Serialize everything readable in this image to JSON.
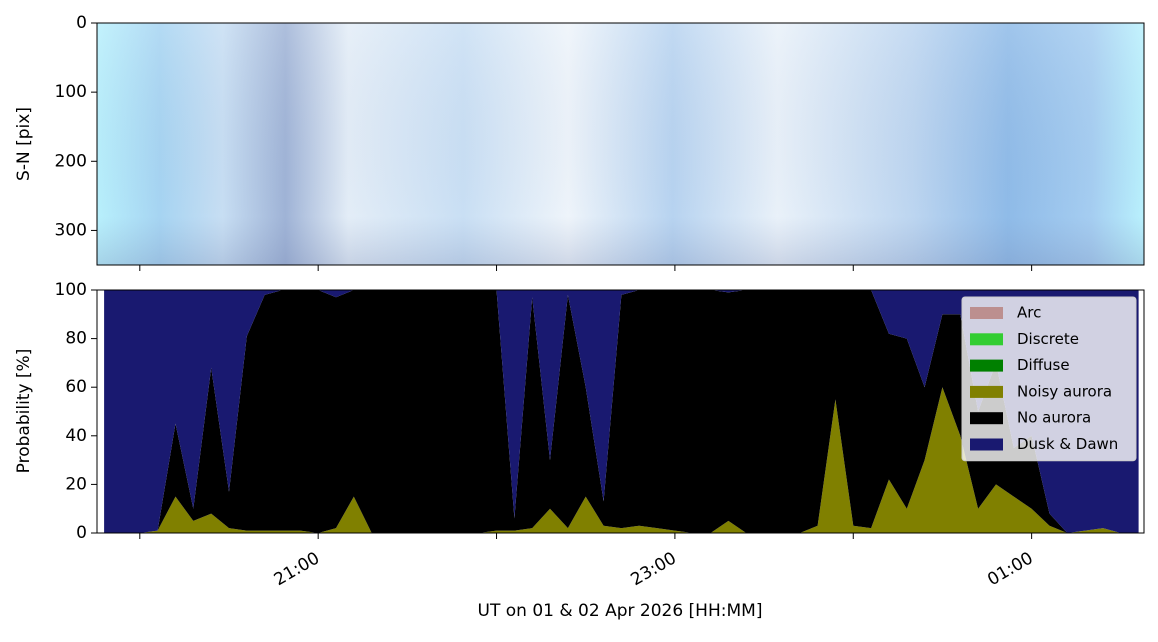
{
  "chart_data": [
    {
      "type": "image",
      "ylabel": "S-N [pix]",
      "ylim": [
        350,
        0
      ],
      "yticks": [
        0,
        100,
        200,
        300
      ],
      "xlim": [
        19.76,
        25.63
      ]
    },
    {
      "type": "stackplot",
      "ylabel": "Probability [%]",
      "xlabel": "UT on 01 & 02 Apr 2026 [HH:MM]",
      "xlim": [
        19.76,
        25.63
      ],
      "xticks": [
        {
          "value": 20,
          "label": null
        },
        {
          "value": 21,
          "label": "21:00"
        },
        {
          "value": 22,
          "label": null
        },
        {
          "value": 23,
          "label": "23:00"
        },
        {
          "value": 24,
          "label": null
        },
        {
          "value": 25,
          "label": "01:00"
        }
      ],
      "ylim": [
        0,
        100
      ],
      "yticks": [
        0,
        20,
        40,
        60,
        80,
        100
      ],
      "legend": "upper right",
      "x": [
        19.8,
        19.9,
        20.0,
        20.1,
        20.2,
        20.3,
        20.4,
        20.5,
        20.6,
        20.7,
        20.8,
        20.9,
        21.0,
        21.1,
        21.2,
        21.3,
        21.4,
        21.5,
        21.6,
        21.7,
        21.8,
        21.9,
        22.0,
        22.1,
        22.2,
        22.3,
        22.4,
        22.5,
        22.6,
        22.7,
        22.8,
        22.9,
        23.0,
        23.1,
        23.2,
        23.3,
        23.4,
        23.5,
        23.6,
        23.7,
        23.8,
        23.9,
        24.0,
        24.1,
        24.2,
        24.3,
        24.4,
        24.5,
        24.6,
        24.7,
        24.8,
        24.9,
        25.0,
        25.1,
        25.2,
        25.3,
        25.4,
        25.5,
        25.6
      ],
      "series": [
        {
          "name": "Arc",
          "color": "#bc8f8f",
          "values": [
            0,
            0,
            0,
            0,
            0,
            0,
            0,
            0,
            0,
            0,
            0,
            0,
            0,
            0,
            0,
            0,
            0,
            0,
            0,
            0,
            0,
            0,
            0,
            0,
            0,
            0,
            0,
            0,
            0,
            0,
            0,
            0,
            0,
            0,
            0,
            0,
            0,
            0,
            0,
            0,
            0,
            0,
            0,
            0,
            0,
            0,
            0,
            0,
            0,
            0,
            0,
            0,
            0,
            0,
            0,
            0,
            0,
            0,
            0
          ]
        },
        {
          "name": "Discrete",
          "color": "#32cd32",
          "values": [
            0,
            0,
            0,
            0,
            0,
            0,
            0,
            0,
            0,
            0,
            0,
            0,
            0,
            0,
            0,
            0,
            0,
            0,
            0,
            0,
            0,
            0,
            0,
            0,
            0,
            0,
            0,
            0,
            0,
            0,
            0,
            0,
            0,
            0,
            0,
            0,
            0,
            0,
            0,
            0,
            0,
            0,
            0,
            0,
            0,
            0,
            0,
            0,
            0,
            0,
            0,
            0,
            0,
            0,
            0,
            0,
            0,
            0,
            0
          ]
        },
        {
          "name": "Diffuse",
          "color": "#008000",
          "values": [
            0,
            0,
            0,
            0,
            0,
            0,
            0,
            0,
            0,
            0,
            0,
            0,
            0,
            0,
            0,
            0,
            0,
            0,
            0,
            0,
            0,
            0,
            0,
            0,
            0,
            0,
            0,
            0,
            0,
            0,
            0,
            0,
            0,
            0,
            0,
            0,
            0,
            0,
            0,
            0,
            0,
            0,
            0,
            0,
            0,
            0,
            0,
            0,
            0,
            0,
            0,
            0,
            0,
            0,
            0,
            0,
            0,
            0,
            0
          ]
        },
        {
          "name": "Noisy aurora",
          "color": "#808000",
          "values": [
            0,
            0,
            0,
            1,
            15,
            5,
            8,
            2,
            1,
            1,
            1,
            1,
            0,
            2,
            15,
            0,
            0,
            0,
            0,
            0,
            0,
            0,
            1,
            1,
            2,
            10,
            2,
            15,
            3,
            2,
            3,
            2,
            1,
            0,
            0,
            5,
            0,
            0,
            0,
            0,
            3,
            55,
            3,
            2,
            22,
            10,
            30,
            60,
            40,
            10,
            20,
            15,
            10,
            3,
            0,
            1,
            2,
            0,
            0
          ]
        },
        {
          "name": "No aurora",
          "color": "#000000",
          "values": [
            0,
            0,
            0,
            0,
            30,
            5,
            60,
            15,
            80,
            97,
            99,
            99,
            100,
            95,
            85,
            100,
            100,
            100,
            100,
            100,
            100,
            100,
            99,
            5,
            95,
            20,
            96,
            45,
            10,
            96,
            97,
            98,
            99,
            100,
            100,
            94,
            100,
            100,
            100,
            100,
            97,
            45,
            97,
            98,
            60,
            70,
            30,
            30,
            50,
            40,
            50,
            20,
            30,
            5,
            0,
            0,
            0,
            0,
            0
          ]
        },
        {
          "name": "Dusk & Dawn",
          "color": "#191970",
          "values": [
            100,
            100,
            100,
            99,
            55,
            90,
            32,
            83,
            19,
            2,
            0,
            0,
            0,
            3,
            0,
            0,
            0,
            0,
            0,
            0,
            0,
            0,
            0,
            94,
            3,
            70,
            2,
            40,
            87,
            2,
            0,
            0,
            0,
            0,
            0,
            1,
            0,
            0,
            0,
            0,
            0,
            0,
            0,
            0,
            18,
            20,
            40,
            10,
            10,
            50,
            30,
            65,
            60,
            92,
            100,
            99,
            98,
            100,
            100
          ]
        }
      ]
    }
  ]
}
